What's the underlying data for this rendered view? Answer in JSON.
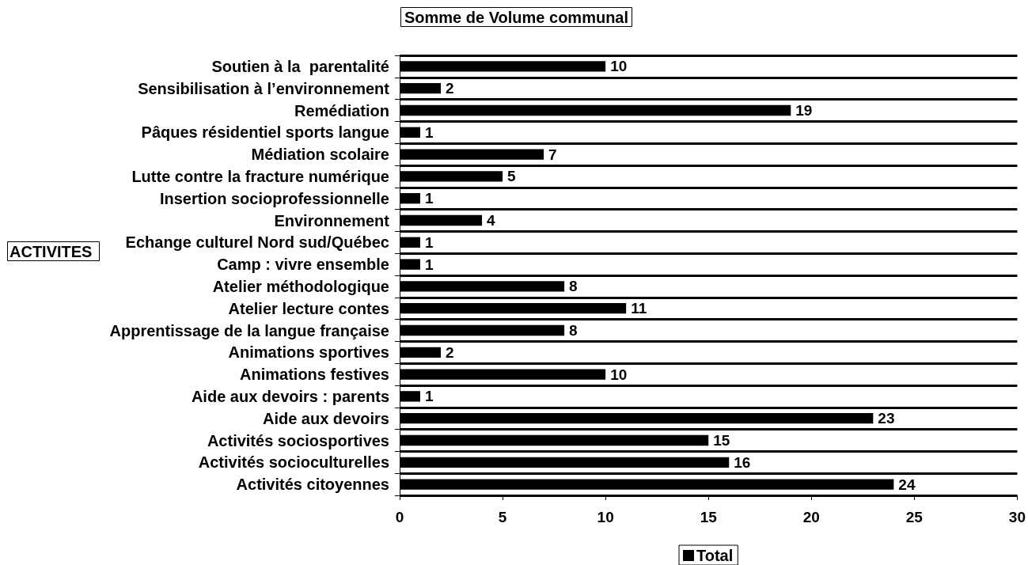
{
  "chart_data": {
    "type": "bar",
    "orientation": "horizontal",
    "title": "Somme de Volume communal",
    "annotations": [
      "ACTIVITES"
    ],
    "categories": [
      "Soutien à la  parentalité",
      "Sensibilisation à l’environnement",
      "Remédiation",
      "Pâques résidentiel sports langue",
      "Médiation scolaire",
      "Lutte contre la fracture numérique",
      "Insertion socioprofessionnelle",
      "Environnement",
      "Echange culturel Nord sud/Québec",
      "Camp : vivre ensemble",
      "Atelier méthodologique",
      "Atelier lecture contes",
      "Apprentissage de la langue française",
      "Animations sportives",
      "Animations festives",
      "Aide aux devoirs : parents",
      "Aide aux devoirs",
      "Activités sociosportives",
      "Activités socioculturelles",
      "Activités citoyennes"
    ],
    "series": [
      {
        "name": "Total",
        "color": "#000000",
        "values": [
          10,
          2,
          19,
          1,
          7,
          5,
          1,
          4,
          1,
          1,
          8,
          11,
          8,
          2,
          10,
          1,
          23,
          15,
          16,
          24
        ]
      }
    ],
    "xlim": [
      0,
      30
    ],
    "xticks": [
      0,
      5,
      10,
      15,
      20,
      25,
      30
    ],
    "grid": "y",
    "legend": "bottom",
    "data_labels": true
  }
}
